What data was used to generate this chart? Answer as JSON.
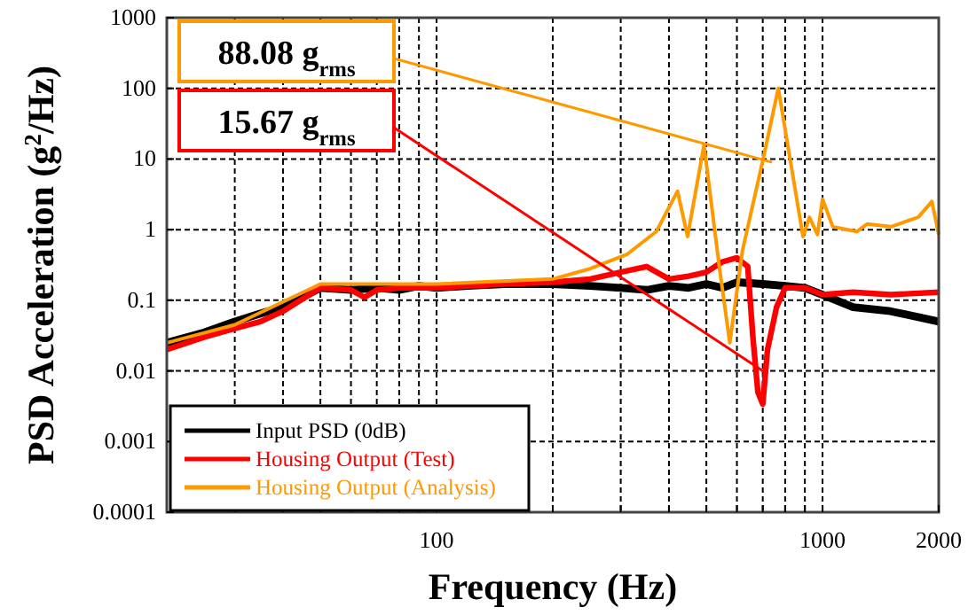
{
  "chart_data": {
    "type": "line",
    "xlabel": "Frequency (Hz)",
    "ylabel": "PSD Acceleration (g$^{2}$/Hz)",
    "log": "xy",
    "grid": true,
    "legend": "bottom left",
    "line_style": "solid",
    "marker": "none",
    "xlim": [
      20,
      2000
    ],
    "xticks": [
      {
        "value": 30,
        "label": null
      },
      {
        "value": 40,
        "label": null
      },
      {
        "value": 50,
        "label": null
      },
      {
        "value": 60,
        "label": null
      },
      {
        "value": 70,
        "label": null
      },
      {
        "value": 80,
        "label": null
      },
      {
        "value": 90,
        "label": null
      },
      100,
      {
        "value": 200,
        "label": null
      },
      {
        "value": 300,
        "label": null
      },
      {
        "value": 400,
        "label": null
      },
      {
        "value": 500,
        "label": null
      },
      {
        "value": 600,
        "label": null
      },
      {
        "value": 700,
        "label": null
      },
      {
        "value": 800,
        "label": null
      },
      {
        "value": 900,
        "label": null
      },
      1000,
      2000
    ],
    "ylim": [
      0.0001,
      1000
    ],
    "yticks": [
      0.0001,
      0.001,
      0.01,
      0.1,
      1,
      10,
      100,
      1000
    ],
    "series": [
      {
        "name": "Input PSD (0dB)",
        "color": "#000000",
        "x": [
          20,
          25,
          30,
          35,
          40,
          50,
          60,
          70,
          80,
          90,
          100,
          120,
          150,
          200,
          250,
          300,
          350,
          400,
          450,
          500,
          550,
          600,
          700,
          800,
          900,
          1000,
          1200,
          1500,
          2000
        ],
        "values": [
          0.025,
          0.035,
          0.05,
          0.065,
          0.08,
          0.15,
          0.14,
          0.15,
          0.14,
          0.16,
          0.15,
          0.16,
          0.17,
          0.17,
          0.16,
          0.15,
          0.14,
          0.16,
          0.15,
          0.17,
          0.15,
          0.18,
          0.17,
          0.16,
          0.15,
          0.12,
          0.08,
          0.07,
          0.05
        ]
      },
      {
        "name": "Housing Output (Test)",
        "color": "#ff0000",
        "x": [
          20,
          25,
          30,
          35,
          40,
          50,
          60,
          65,
          70,
          80,
          100,
          150,
          200,
          250,
          300,
          350,
          400,
          450,
          500,
          550,
          600,
          640,
          660,
          680,
          700,
          720,
          760,
          800,
          900,
          1000,
          1200,
          1500,
          2000
        ],
        "values": [
          0.02,
          0.03,
          0.04,
          0.05,
          0.07,
          0.15,
          0.14,
          0.11,
          0.14,
          0.15,
          0.15,
          0.17,
          0.18,
          0.2,
          0.25,
          0.3,
          0.2,
          0.22,
          0.25,
          0.35,
          0.4,
          0.3,
          0.03,
          0.005,
          0.0034,
          0.02,
          0.08,
          0.15,
          0.15,
          0.12,
          0.13,
          0.12,
          0.13
        ]
      },
      {
        "name": "Housing Output (Analysis)",
        "color": "#ff9900",
        "x": [
          20,
          30,
          50,
          100,
          200,
          250,
          312,
          371,
          421,
          447,
          493,
          540,
          575,
          620,
          700,
          768,
          890,
          925,
          970,
          1000,
          1063,
          1226,
          1304,
          1504,
          1770,
          1920,
          2000
        ],
        "values": [
          0.025,
          0.045,
          0.17,
          0.17,
          0.2,
          0.28,
          0.45,
          0.94,
          3.5,
          0.8,
          15.8,
          0.3,
          0.025,
          0.5,
          9.5,
          100,
          0.8,
          1.5,
          0.85,
          2.7,
          1.1,
          0.94,
          1.2,
          1.1,
          1.5,
          2.5,
          0.85
        ]
      }
    ],
    "annotations": [
      {
        "text": "88.08 g$_{rms}$",
        "x": 740,
        "y": 9
      },
      {
        "text": "15.67 g$_{rms}$",
        "x": 700,
        "y": 0.01
      }
    ]
  }
}
